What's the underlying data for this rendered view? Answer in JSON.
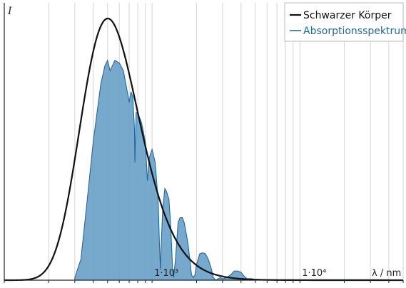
{
  "chart_data": {
    "type": "area",
    "xscale": "log",
    "xlabel": "λ / nm",
    "ylabel": "I",
    "xlim": [
      100,
      50000
    ],
    "ylim": [
      0,
      1.0
    ],
    "grid": "vertical",
    "legend": "top-right",
    "tick_labels": [
      {
        "x": 1000,
        "text": "1·10³"
      },
      {
        "x": 10000,
        "text": "1·10⁴"
      }
    ],
    "colors": {
      "blackbody": "#111111",
      "absorption_fill": "#6aa2c8",
      "absorption_line": "#1f6a9e"
    },
    "series": [
      {
        "name": "Schwarzer Körper",
        "kind": "line",
        "temperature_K": 5778
      },
      {
        "name": "Absorptionsspektrum",
        "kind": "area",
        "x": [
          300,
          330,
          360,
          400,
          450,
          480,
          500,
          520,
          560,
          600,
          640,
          690,
          700,
          720,
          740,
          760,
          765,
          780,
          800,
          850,
          900,
          930,
          960,
          1000,
          1050,
          1100,
          1120,
          1140,
          1150,
          1180,
          1220,
          1250,
          1300,
          1340,
          1380,
          1400,
          1440,
          1500,
          1550,
          1600,
          1650,
          1700,
          1750,
          1800,
          1850,
          1900,
          1950,
          2000,
          2100,
          2200,
          2300,
          2400,
          2500,
          2600,
          2700,
          2800,
          2900,
          3000,
          3200,
          3400,
          3600,
          3800,
          4000,
          4200,
          4400,
          4600,
          4800,
          5000,
          6000,
          7000,
          8000,
          9000,
          10000,
          12000,
          14000,
          17000,
          20000,
          25000,
          30000,
          40000
        ],
        "y": [
          0.01,
          0.08,
          0.28,
          0.53,
          0.75,
          0.82,
          0.84,
          0.8,
          0.84,
          0.83,
          0.8,
          0.7,
          0.68,
          0.72,
          0.7,
          0.58,
          0.45,
          0.64,
          0.64,
          0.6,
          0.53,
          0.38,
          0.47,
          0.5,
          0.45,
          0.3,
          0.15,
          0.04,
          0.12,
          0.27,
          0.35,
          0.34,
          0.31,
          0.2,
          0.03,
          0.01,
          0.08,
          0.22,
          0.24,
          0.24,
          0.22,
          0.18,
          0.14,
          0.08,
          0.02,
          0.01,
          0.02,
          0.06,
          0.1,
          0.105,
          0.1,
          0.08,
          0.05,
          0.01,
          0.0,
          0.005,
          0.01,
          0.005,
          0.01,
          0.02,
          0.035,
          0.035,
          0.03,
          0.015,
          0.005,
          0.006,
          0.005,
          0.003,
          0.002,
          0.002,
          0.002,
          0.002,
          0.002,
          0.002,
          0.002,
          0.002,
          0.002,
          0.002,
          0.002,
          0.002
        ]
      }
    ]
  }
}
